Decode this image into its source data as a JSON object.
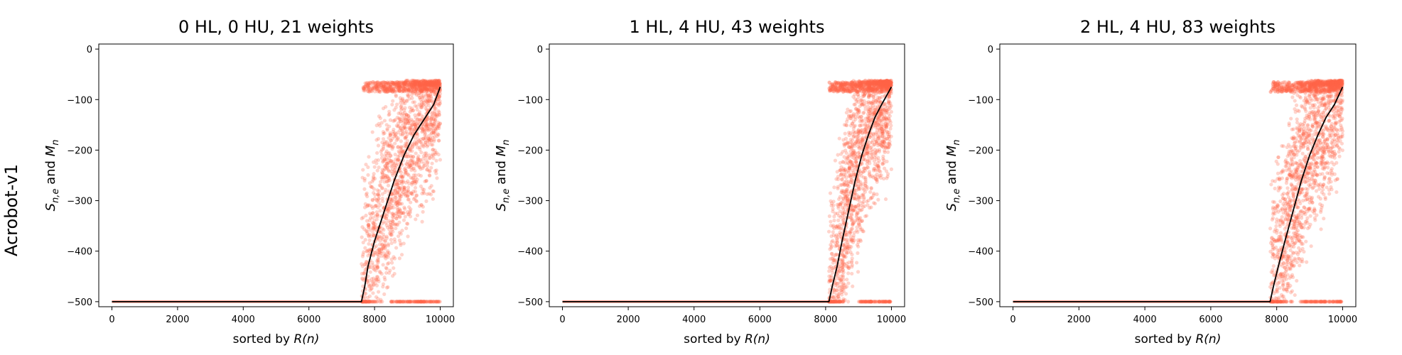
{
  "figure": {
    "row_label": "Acrobot-v1"
  },
  "chart_data": [
    {
      "type": "scatter",
      "title": "0 HL, 0 HU, 21 weights",
      "xlabel": "sorted by R(n)",
      "ylabel": "S_{n,e} and M_n",
      "xlim": [
        -400,
        10400
      ],
      "ylim": [
        -510,
        10
      ],
      "xticks": [
        0,
        2000,
        4000,
        6000,
        8000,
        10000
      ],
      "yticks": [
        0,
        -100,
        -200,
        -300,
        -400,
        -500
      ],
      "grid": false,
      "breakpoint": 7600,
      "series": [
        {
          "kind": "scatter",
          "color": "#ff6347",
          "x_range": [
            0,
            10000
          ],
          "y_range": [
            -500,
            -65
          ],
          "description_points": [
            [
              0,
              -500
            ],
            [
              7600,
              -500
            ],
            [
              7700,
              -70
            ],
            [
              10000,
              -65
            ]
          ]
        },
        {
          "kind": "line",
          "color": "#000000",
          "x": [
            0,
            7600,
            7700,
            7800,
            8000,
            8300,
            8600,
            8900,
            9200,
            9500,
            9800,
            10000
          ],
          "y": [
            -500,
            -500,
            -470,
            -430,
            -380,
            -320,
            -260,
            -210,
            -170,
            -140,
            -110,
            -75
          ]
        }
      ]
    },
    {
      "type": "scatter",
      "title": "1 HL, 4 HU, 43 weights",
      "xlabel": "sorted by R(n)",
      "ylabel": "S_{n,e} and M_n",
      "xlim": [
        -400,
        10400
      ],
      "ylim": [
        -510,
        10
      ],
      "xticks": [
        0,
        2000,
        4000,
        6000,
        8000,
        10000
      ],
      "yticks": [
        0,
        -100,
        -200,
        -300,
        -400,
        -500
      ],
      "grid": false,
      "breakpoint": 8100,
      "series": [
        {
          "kind": "scatter",
          "color": "#ff6347",
          "x_range": [
            0,
            10000
          ],
          "y_range": [
            -500,
            -65
          ],
          "description_points": [
            [
              0,
              -500
            ],
            [
              8100,
              -500
            ],
            [
              8200,
              -70
            ],
            [
              10000,
              -65
            ]
          ]
        },
        {
          "kind": "line",
          "color": "#000000",
          "x": [
            0,
            8100,
            8200,
            8350,
            8500,
            8700,
            8900,
            9100,
            9300,
            9500,
            9700,
            10000
          ],
          "y": [
            -500,
            -500,
            -470,
            -430,
            -380,
            -320,
            -260,
            -210,
            -170,
            -135,
            -110,
            -75
          ]
        }
      ]
    },
    {
      "type": "scatter",
      "title": "2 HL, 4 HU, 83 weights",
      "xlabel": "sorted by R(n)",
      "ylabel": "S_{n,e} and M_n",
      "xlim": [
        -400,
        10400
      ],
      "ylim": [
        -510,
        10
      ],
      "xticks": [
        0,
        2000,
        4000,
        6000,
        8000,
        10000
      ],
      "yticks": [
        0,
        -100,
        -200,
        -300,
        -400,
        -500
      ],
      "grid": false,
      "breakpoint": 7800,
      "series": [
        {
          "kind": "scatter",
          "color": "#ff6347",
          "x_range": [
            0,
            10000
          ],
          "y_range": [
            -500,
            -65
          ],
          "description_points": [
            [
              0,
              -500
            ],
            [
              7800,
              -500
            ],
            [
              7900,
              -70
            ],
            [
              10000,
              -65
            ]
          ]
        },
        {
          "kind": "line",
          "color": "#000000",
          "x": [
            0,
            7800,
            7900,
            8050,
            8250,
            8500,
            8750,
            9000,
            9250,
            9500,
            9750,
            10000
          ],
          "y": [
            -500,
            -500,
            -470,
            -430,
            -380,
            -320,
            -260,
            -210,
            -170,
            -135,
            -110,
            -75
          ]
        }
      ]
    }
  ]
}
